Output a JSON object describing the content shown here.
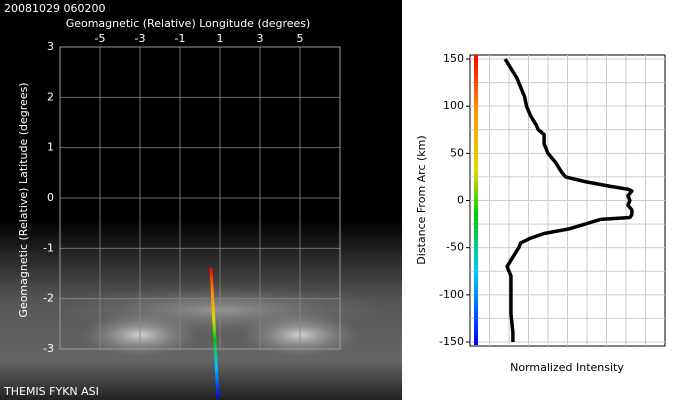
{
  "chart_data": [
    {
      "type": "image",
      "title": "20081029 060200",
      "x_label": "Geomagnetic (Relative) Longitude (degrees)",
      "y_label": "Geomagnetic (Relative) Latitude (degrees)",
      "footer": "THEMIS FYKN ASI",
      "xlim": [
        -7,
        7
      ],
      "ylim": [
        -3,
        3
      ],
      "xticks": [
        -5,
        -3,
        -1,
        1,
        3,
        5
      ],
      "yticks": [
        -3,
        -2,
        -1,
        0,
        1,
        2,
        3
      ],
      "grid": true
    },
    {
      "type": "line",
      "x_label": "Normalized Intensity",
      "y_label": "Distance From Arc (km)",
      "color": "#000000",
      "xlim": [
        0,
        1
      ],
      "ylim": [
        -150,
        150
      ],
      "yticks": [
        -150,
        -100,
        -50,
        0,
        50,
        100,
        150
      ],
      "grid": true,
      "y": [
        150,
        140,
        130,
        120,
        110,
        100,
        90,
        80,
        75,
        70,
        60,
        50,
        45,
        40,
        30,
        25,
        20,
        15,
        12,
        10,
        5,
        0,
        -5,
        -10,
        -15,
        -18,
        -20,
        -30,
        -35,
        -40,
        -45,
        -50,
        -60,
        -70,
        -80,
        -100,
        -120,
        -140,
        -150
      ],
      "values": [
        0.18,
        0.21,
        0.24,
        0.26,
        0.28,
        0.29,
        0.31,
        0.34,
        0.35,
        0.38,
        0.38,
        0.4,
        0.42,
        0.44,
        0.47,
        0.49,
        0.59,
        0.72,
        0.81,
        0.83,
        0.81,
        0.82,
        0.81,
        0.83,
        0.83,
        0.82,
        0.67,
        0.51,
        0.38,
        0.31,
        0.26,
        0.25,
        0.22,
        0.19,
        0.21,
        0.21,
        0.21,
        0.22,
        0.22
      ]
    }
  ]
}
